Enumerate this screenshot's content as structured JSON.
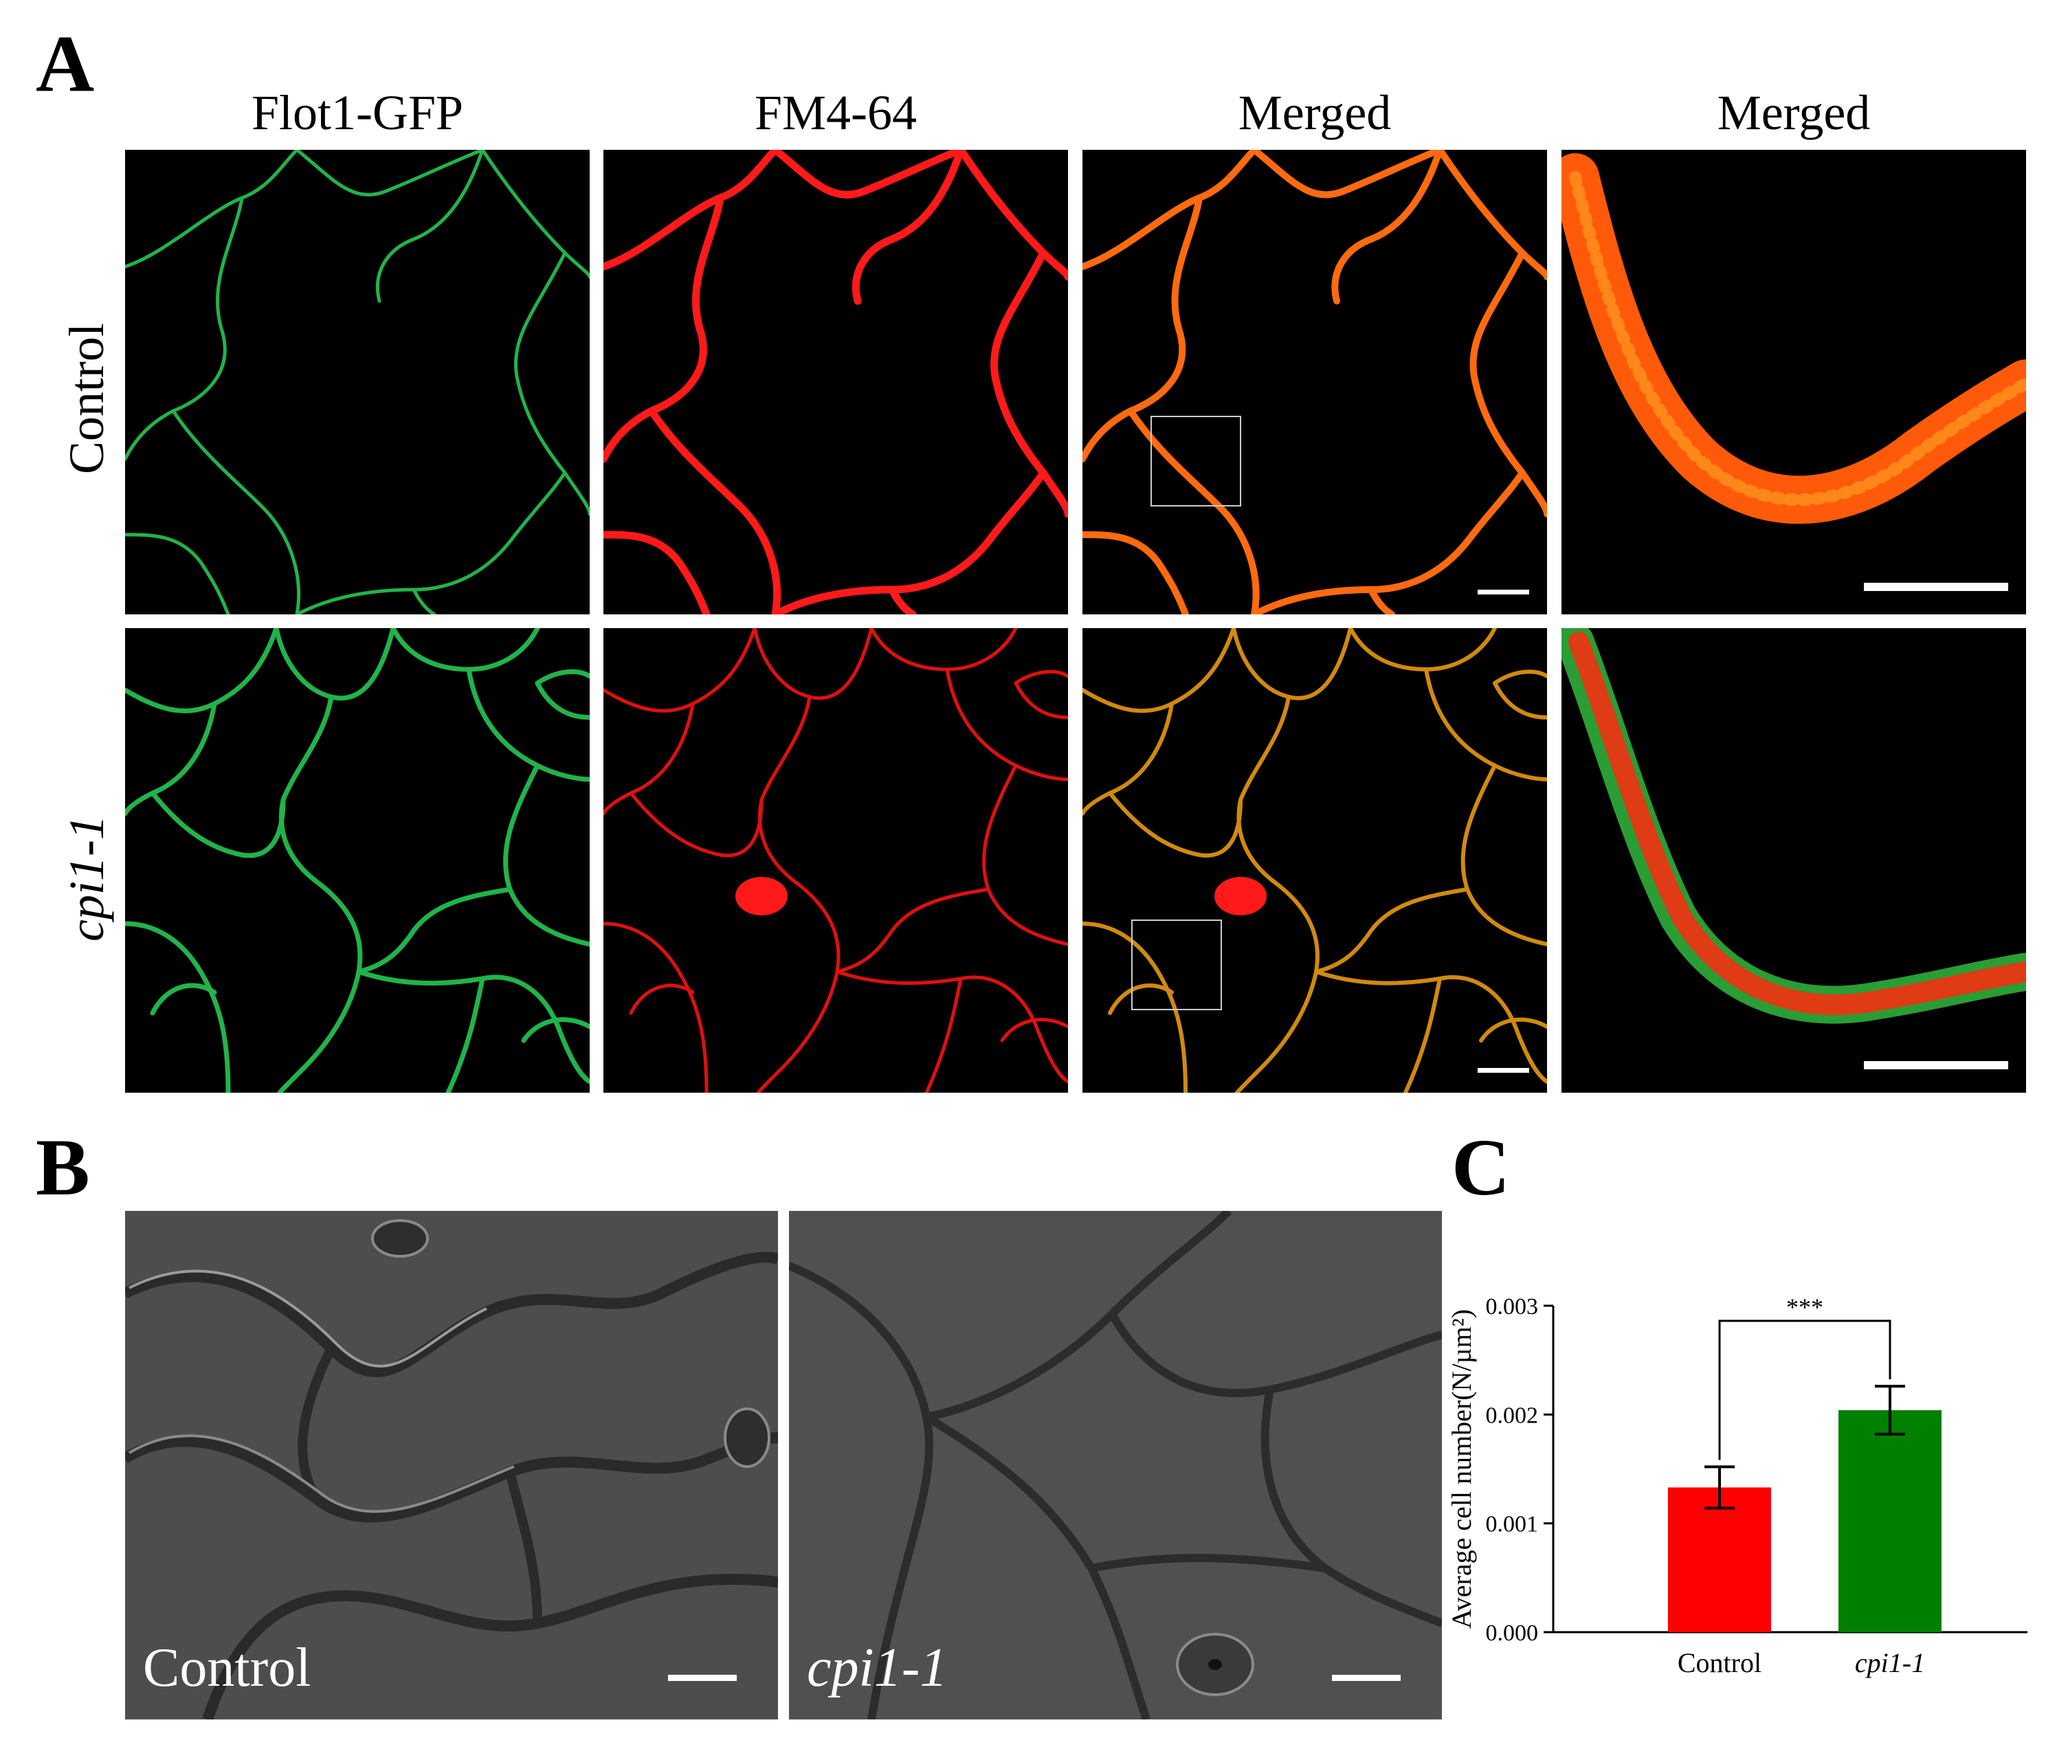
{
  "panel_labels": {
    "a": "A",
    "b": "B",
    "c": "C"
  },
  "panel_a": {
    "column_headers": [
      "Flot1-GFP",
      "FM4-64",
      "Merged",
      "Merged"
    ],
    "row_labels": [
      "Control",
      "cpi1-1"
    ]
  },
  "panel_b": {
    "image_labels": [
      "Control",
      "cpi1-1"
    ]
  },
  "colors": {
    "gfp": "#22b34a",
    "fm": "#ff1a1a",
    "merge": "#ff6a10",
    "control_bar": "#ff0000",
    "mutant_bar": "#008000"
  },
  "chart_data": {
    "type": "bar",
    "categories": [
      "Control",
      "cpi1-1"
    ],
    "values": [
      0.00133,
      0.00204
    ],
    "errors": [
      0.00019,
      0.00022
    ],
    "bar_colors": [
      "#ff0000",
      "#008000"
    ],
    "ylabel": "Average cell number(N/µm²)",
    "ylim": [
      0,
      0.003
    ],
    "yticks": [
      "0.000",
      "0.001",
      "0.002",
      "0.003"
    ],
    "ytick_values": [
      0,
      0.001,
      0.002,
      0.003
    ],
    "annotation": "***",
    "grid": false
  }
}
